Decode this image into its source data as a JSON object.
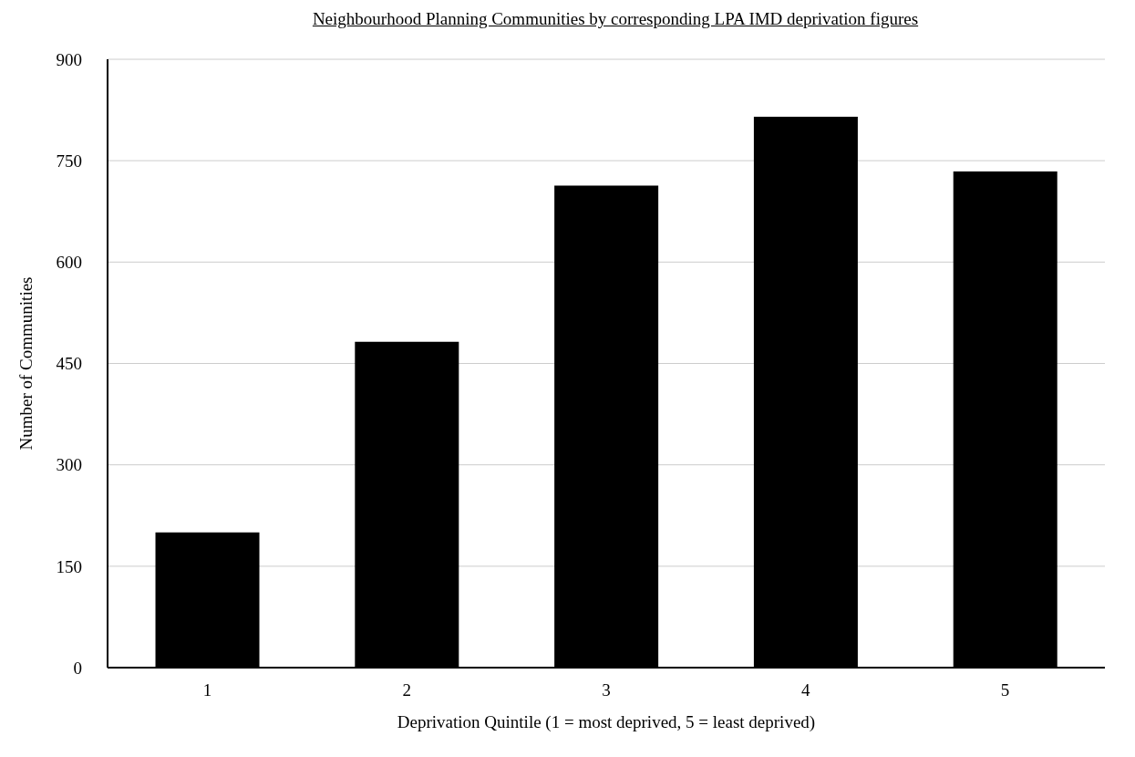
{
  "chart_data": {
    "type": "bar",
    "title": "Neighbourhood Planning Communities by corresponding LPA IMD deprivation figures",
    "xlabel": "Deprivation Quintile (1 = most deprived, 5 = least deprived)",
    "ylabel": "Number of Communities",
    "categories": [
      "1",
      "2",
      "3",
      "4",
      "5"
    ],
    "values": [
      200,
      482,
      713,
      815,
      734
    ],
    "color": "#000000",
    "ylim": [
      0,
      900
    ],
    "yticks": [
      0,
      150,
      300,
      450,
      600,
      750,
      900
    ],
    "grid": "y"
  }
}
